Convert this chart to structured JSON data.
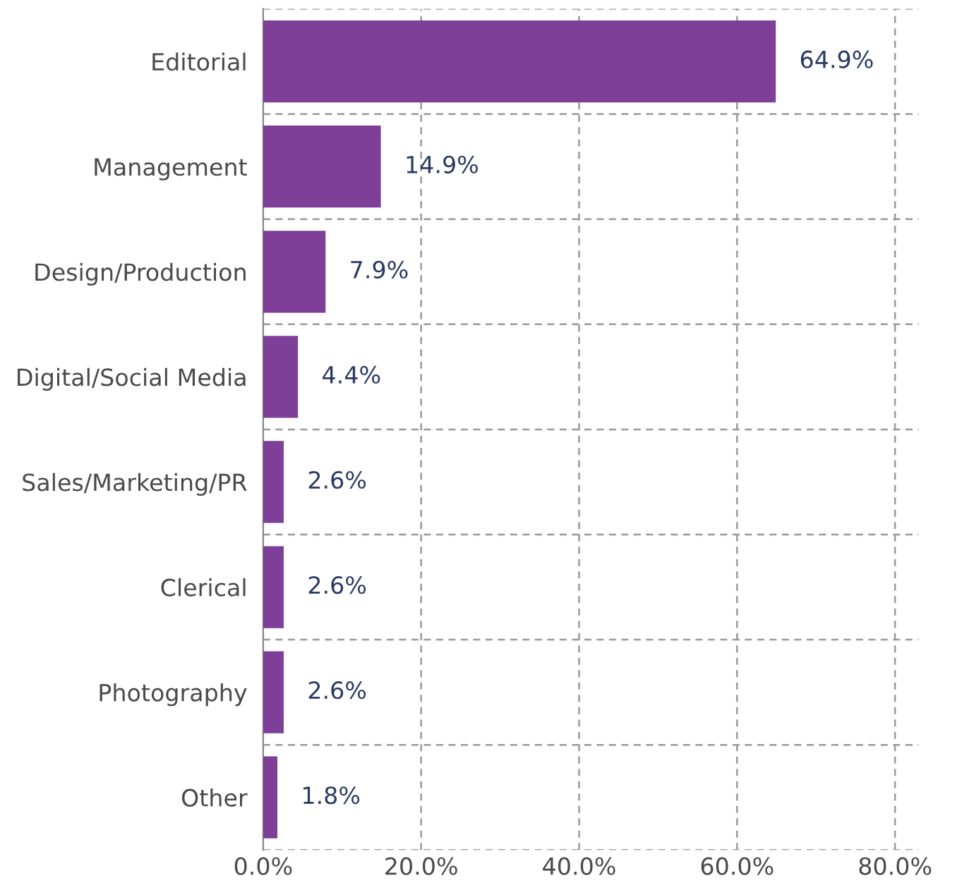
{
  "chart_data": {
    "type": "bar",
    "orientation": "horizontal",
    "categories": [
      "Editorial",
      "Management",
      "Design/Production",
      "Digital/Social Media",
      "Sales/Marketing/PR",
      "Clerical",
      "Photography",
      "Other"
    ],
    "values": [
      64.9,
      14.9,
      7.9,
      4.4,
      2.6,
      2.6,
      2.6,
      1.8
    ],
    "value_labels": [
      "64.9%",
      "14.9%",
      "7.9%",
      "4.4%",
      "2.6%",
      "2.6%",
      "2.6%",
      "1.8%"
    ],
    "color": "#7d3f97",
    "xlim": [
      0,
      83
    ],
    "xticks": [
      {
        "value": 0,
        "label": "0.0%"
      },
      {
        "value": 20,
        "label": "20.0%"
      },
      {
        "value": 40,
        "label": "40.0%"
      },
      {
        "value": 60,
        "label": "60.0%"
      },
      {
        "value": 80,
        "label": "80.0%"
      }
    ],
    "grid": true,
    "legend": false
  }
}
